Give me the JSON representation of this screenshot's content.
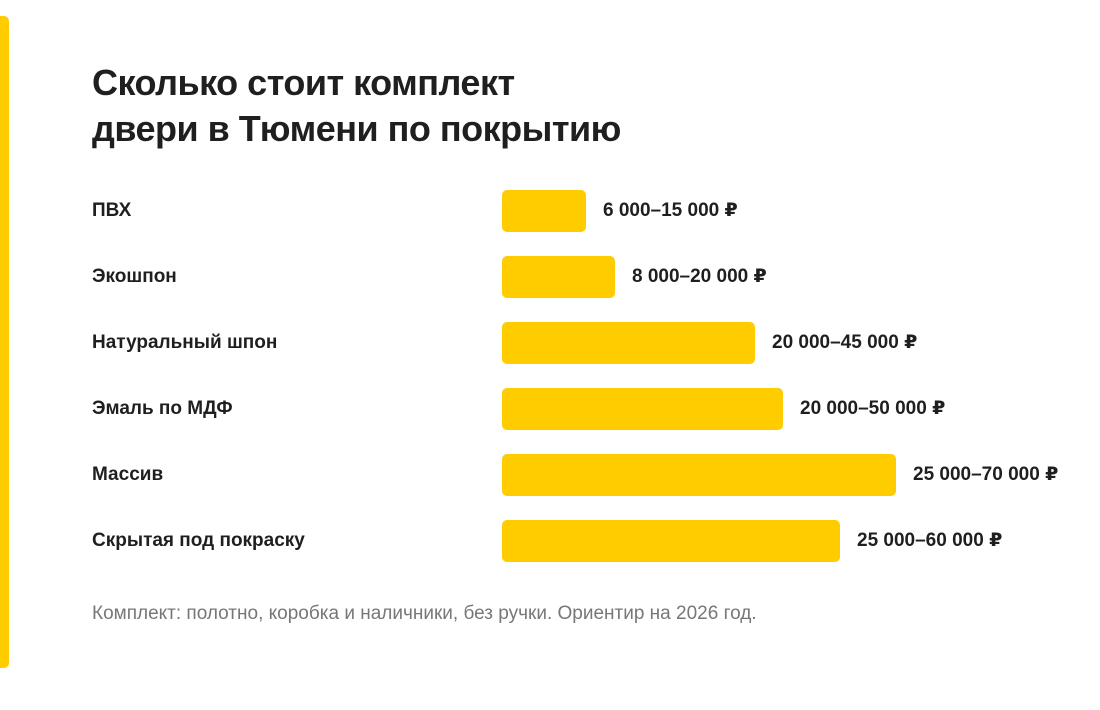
{
  "title": {
    "line1": "Сколько стоит комплект",
    "line2": "двери в Тюмени по покрытию"
  },
  "chart_data": {
    "type": "bar",
    "orientation": "horizontal",
    "title": "Сколько стоит комплект двери в Тюмени по покрытию",
    "categories": [
      "ПВХ",
      "Экошпон",
      "Натуральный шпон",
      "Эмаль по МДФ",
      "Массив",
      "Скрытая под покраску"
    ],
    "values": [
      15000,
      20000,
      45000,
      50000,
      70000,
      60000
    ],
    "ranges": [
      [
        6000,
        15000
      ],
      [
        8000,
        20000
      ],
      [
        20000,
        45000
      ],
      [
        20000,
        50000
      ],
      [
        25000,
        70000
      ],
      [
        25000,
        60000
      ]
    ],
    "value_labels": [
      "6 000–15 000 ₽",
      "8 000–20 000 ₽",
      "20 000–45 000 ₽",
      "20 000–50 000 ₽",
      "25 000–70 000 ₽",
      "25 000–60 000 ₽"
    ],
    "bar_color": "#FFCC00",
    "grid": false
  },
  "footnote": "Комплект: полотно, коробка и наличники, без ручки. Ориентир на 2026 год.",
  "colors": {
    "accent": "#FFCC00",
    "text": "#1f1f1f",
    "muted": "#777777"
  }
}
